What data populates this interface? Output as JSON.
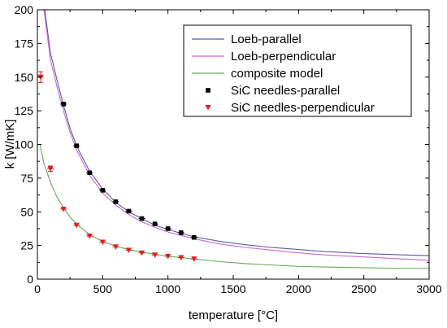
{
  "chart_data": {
    "type": "scatter",
    "xlabel": "temperature [°C]",
    "ylabel": "k [W/mK]",
    "xlim": [
      0,
      3000
    ],
    "ylim": [
      0,
      200
    ],
    "xticks": [
      0,
      500,
      1000,
      1500,
      2000,
      2500,
      3000
    ],
    "yticks": [
      0,
      25,
      50,
      75,
      100,
      125,
      150,
      175,
      200
    ],
    "grid": false,
    "legend_position": "top-right",
    "series": [
      {
        "name": "Loeb-parallel",
        "kind": "line",
        "color": "#5a5aa8",
        "x": [
          20,
          50,
          100,
          150,
          200,
          250,
          300,
          400,
          500,
          600,
          700,
          800,
          900,
          1000,
          1100,
          1200,
          1400,
          1600,
          1800,
          2000,
          2200,
          2500,
          2800,
          3000
        ],
        "y": [
          260,
          205,
          168,
          148,
          129,
          112,
          99,
          80,
          67,
          57,
          50,
          45,
          40,
          37,
          34,
          31.5,
          28,
          25.5,
          23.5,
          22,
          20.5,
          19,
          18,
          17.5
        ]
      },
      {
        "name": "Loeb-perpendicular",
        "kind": "line",
        "color": "#cc66cc",
        "x": [
          20,
          50,
          100,
          150,
          200,
          250,
          300,
          400,
          500,
          600,
          700,
          800,
          900,
          1000,
          1100,
          1200,
          1400,
          1600,
          1800,
          2000,
          2200,
          2500,
          2800,
          3000
        ],
        "y": [
          250,
          200,
          163,
          143,
          125,
          109,
          96,
          77,
          64,
          55,
          48,
          42.5,
          38.5,
          35,
          32.5,
          30,
          26,
          23.5,
          21.5,
          19.5,
          18,
          16.5,
          15,
          14
        ]
      },
      {
        "name": "composite model",
        "kind": "line",
        "color": "#66aa55",
        "x": [
          20,
          50,
          100,
          150,
          200,
          250,
          300,
          400,
          500,
          600,
          700,
          800,
          900,
          1000,
          1100,
          1200,
          1400,
          1600,
          1800,
          2000,
          2200,
          2500,
          2800,
          3000
        ],
        "y": [
          100,
          86,
          72,
          61,
          53,
          46,
          41,
          33,
          28,
          24.5,
          22,
          20,
          18.5,
          17,
          16,
          15,
          13,
          11.5,
          10.5,
          9.5,
          9,
          8.5,
          8,
          8
        ]
      },
      {
        "name": "SiC needles-parallel",
        "kind": "points",
        "marker": "square",
        "color": "#000000",
        "x": [
          200,
          300,
          400,
          500,
          600,
          700,
          800,
          900,
          1000,
          1100,
          1200
        ],
        "y": [
          130,
          99,
          79,
          66,
          57.5,
          50.5,
          45,
          41,
          37.5,
          34.5,
          31
        ]
      },
      {
        "name": "SiC needles-perpendicular",
        "kind": "points",
        "marker": "triangle-down",
        "color": "#dd2222",
        "x": [
          25,
          100,
          200,
          300,
          400,
          500,
          600,
          700,
          800,
          900,
          1000,
          1100,
          1200
        ],
        "y": [
          150,
          82,
          52,
          40,
          32,
          27.5,
          24,
          21.5,
          19.5,
          18,
          17,
          16,
          15
        ],
        "error": [
          4,
          2,
          0,
          0,
          0,
          0,
          0,
          0,
          0,
          0,
          0,
          0,
          0
        ]
      }
    ]
  }
}
